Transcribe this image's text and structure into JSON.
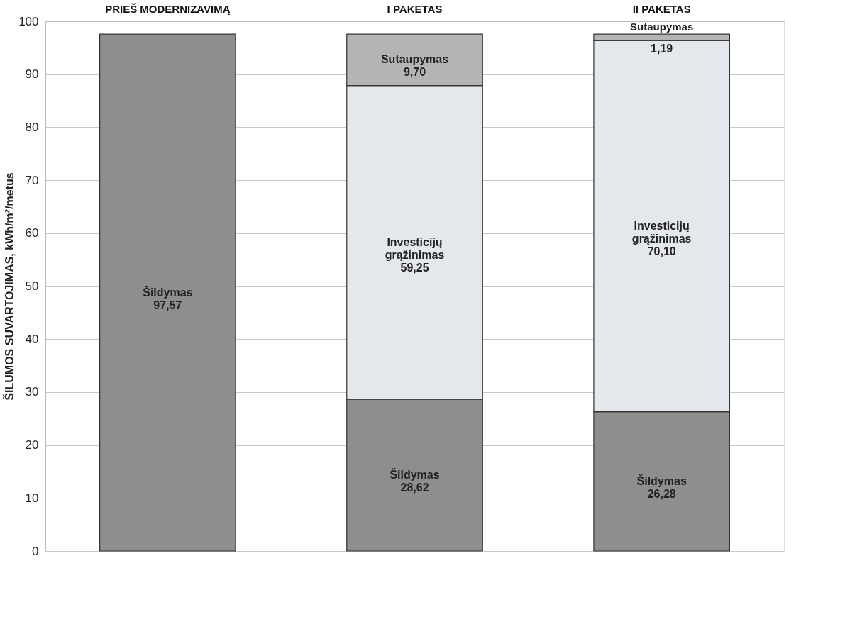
{
  "chart_data": {
    "type": "bar",
    "stacked": true,
    "ylabel": "ŠILUMOS SUVARTOJIMAS, kWh/m²/metus",
    "categories": [
      "PRIEŠ MODERNIZAVIMĄ",
      "I PAKETAS",
      "II PAKETAS"
    ],
    "series": [
      {
        "name": "Šildymas",
        "color": "#8e8e8e",
        "values": [
          97.57,
          28.62,
          26.28
        ],
        "value_labels": [
          "97,57",
          "28,62",
          "26,28"
        ]
      },
      {
        "name": "Investicijų grąžinimas",
        "color": "#e4e7ec",
        "values": [
          null,
          59.25,
          70.1
        ],
        "value_labels": [
          null,
          "59,25",
          "70,10"
        ]
      },
      {
        "name": "Sutaupymas",
        "color": "#b4b4b4",
        "values": [
          null,
          9.7,
          1.19
        ],
        "value_labels": [
          null,
          "9,70",
          "1,19"
        ]
      }
    ],
    "ylim": [
      0,
      100
    ],
    "yticks": [
      0,
      10,
      20,
      30,
      40,
      50,
      60,
      70,
      80,
      90,
      100
    ],
    "grid": "y",
    "legend": false
  }
}
